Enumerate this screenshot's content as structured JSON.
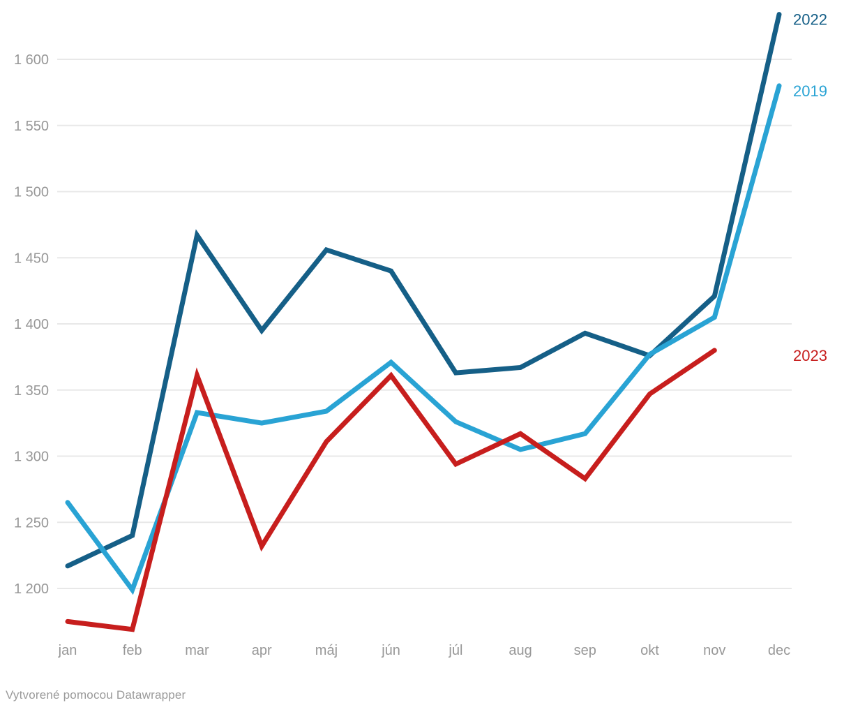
{
  "attribution": "Vytvorené pomocou Datawrapper",
  "chart_data": {
    "type": "line",
    "x": [
      "jan",
      "feb",
      "mar",
      "apr",
      "máj",
      "jún",
      "júl",
      "aug",
      "sep",
      "okt",
      "nov",
      "dec"
    ],
    "yticks": [
      1200,
      1250,
      1300,
      1350,
      1400,
      1450,
      1500,
      1550,
      1600
    ],
    "ytick_labels": [
      "1 200",
      "1 250",
      "1 300",
      "1 350",
      "1 400",
      "1 450",
      "1 500",
      "1 550",
      "1 600"
    ],
    "ylim": [
      1160,
      1640
    ],
    "grid": true,
    "legend_position": "line-end-right",
    "series": [
      {
        "name": "2022",
        "color": "#155f87",
        "values": [
          1217,
          1240,
          1467,
          1395,
          1456,
          1440,
          1363,
          1367,
          1393,
          1376,
          1421,
          1634
        ]
      },
      {
        "name": "2019",
        "color": "#29a3d4",
        "values": [
          1265,
          1199,
          1333,
          1325,
          1334,
          1371,
          1326,
          1305,
          1317,
          1377,
          1405,
          1580
        ]
      },
      {
        "name": "2023",
        "color": "#c71e1d",
        "values": [
          1175,
          1169,
          1361,
          1232,
          1311,
          1361,
          1294,
          1317,
          1283,
          1347,
          1380,
          null
        ]
      }
    ],
    "colors": {
      "gridline": "#e8e8e8",
      "tick_label": "#979797",
      "attribution": "#9a9a9a"
    }
  }
}
